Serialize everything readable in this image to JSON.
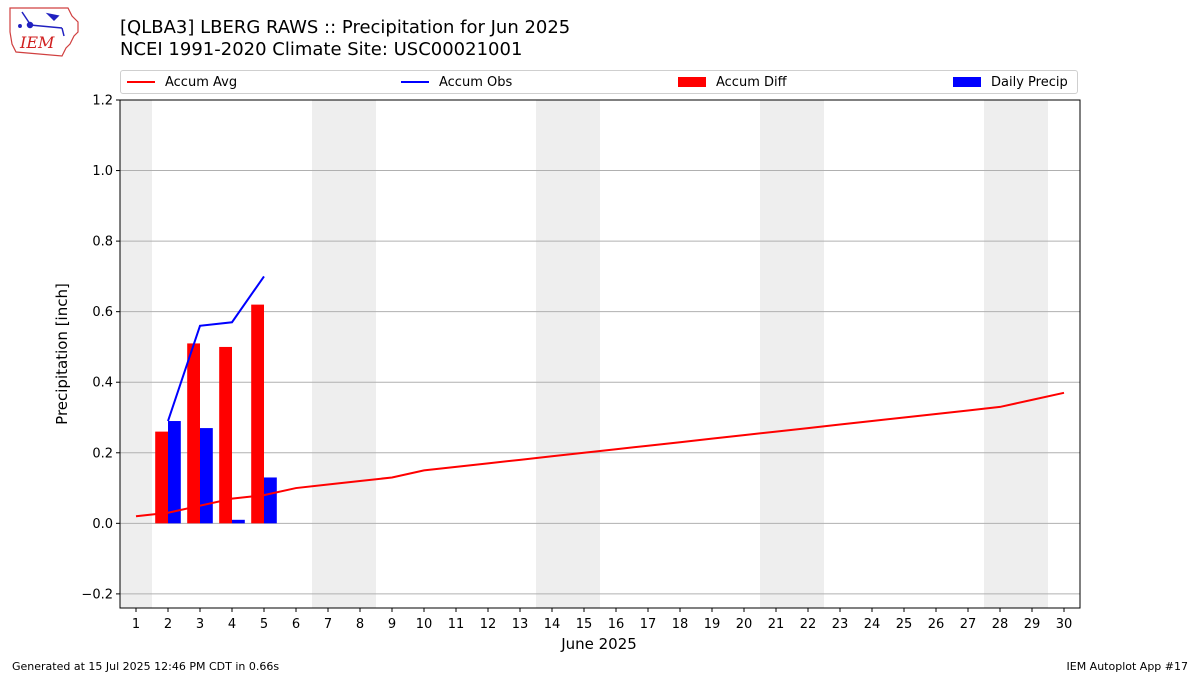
{
  "header": {
    "title_line1": "[QLBA3] LBERG RAWS :: Precipitation for Jun 2025",
    "title_line2": "NCEI 1991-2020 Climate Site: USC00021001",
    "logo_text": "IEM"
  },
  "footer": {
    "left": "Generated at 15 Jul 2025 12:46 PM CDT in 0.66s",
    "right": "IEM Autoplot App #17"
  },
  "colors": {
    "accum_avg": "#ff0000",
    "accum_obs": "#0000ff",
    "accum_diff": "#ff0000",
    "daily_precip": "#0000ff",
    "weekend_shade": "#eeeeee",
    "grid": "#b0b0b0"
  },
  "chart_data": {
    "type": "bar",
    "title": "[QLBA3] LBERG RAWS :: Precipitation for Jun 2025",
    "subtitle": "NCEI 1991-2020 Climate Site: USC00021001",
    "xlabel": "June 2025",
    "ylabel": "Precipitation [inch]",
    "xlim": [
      0.5,
      30.5
    ],
    "ylim": [
      -0.24,
      1.2
    ],
    "x_ticks": [
      1,
      2,
      3,
      4,
      5,
      6,
      7,
      8,
      9,
      10,
      11,
      12,
      13,
      14,
      15,
      16,
      17,
      18,
      19,
      20,
      21,
      22,
      23,
      24,
      25,
      26,
      27,
      28,
      29,
      30
    ],
    "y_ticks": [
      -0.2,
      0.0,
      0.2,
      0.4,
      0.6,
      0.8,
      1.0,
      1.2
    ],
    "y_tick_labels": [
      "−0.2",
      "0.0",
      "0.2",
      "0.4",
      "0.6",
      "0.8",
      "1.0",
      "1.2"
    ],
    "grid": "horizontal",
    "legend_position": "top",
    "weekend_spans": [
      [
        0.5,
        1.5
      ],
      [
        6.5,
        8.5
      ],
      [
        13.5,
        15.5
      ],
      [
        20.5,
        22.5
      ],
      [
        27.5,
        29.5
      ]
    ],
    "series": [
      {
        "name": "Accum Avg",
        "kind": "line",
        "x": [
          1,
          2,
          3,
          4,
          5,
          6,
          7,
          8,
          9,
          10,
          11,
          12,
          13,
          14,
          15,
          16,
          17,
          18,
          19,
          20,
          21,
          22,
          23,
          24,
          25,
          26,
          27,
          28,
          29,
          30
        ],
        "values": [
          0.02,
          0.03,
          0.05,
          0.07,
          0.08,
          0.1,
          0.11,
          0.12,
          0.13,
          0.15,
          0.16,
          0.17,
          0.18,
          0.19,
          0.2,
          0.21,
          0.22,
          0.23,
          0.24,
          0.25,
          0.26,
          0.27,
          0.28,
          0.29,
          0.3,
          0.31,
          0.32,
          0.33,
          0.35,
          0.37
        ]
      },
      {
        "name": "Accum Obs",
        "kind": "line",
        "x": [
          2,
          3,
          4,
          5
        ],
        "values": [
          0.29,
          0.56,
          0.57,
          0.7
        ]
      },
      {
        "name": "Accum Diff",
        "kind": "bar",
        "x": [
          2,
          3,
          4,
          5
        ],
        "values": [
          0.26,
          0.51,
          0.5,
          0.62
        ]
      },
      {
        "name": "Daily Precip",
        "kind": "bar",
        "x": [
          2,
          3,
          4,
          5
        ],
        "values": [
          0.29,
          0.27,
          0.01,
          0.13
        ]
      }
    ]
  }
}
